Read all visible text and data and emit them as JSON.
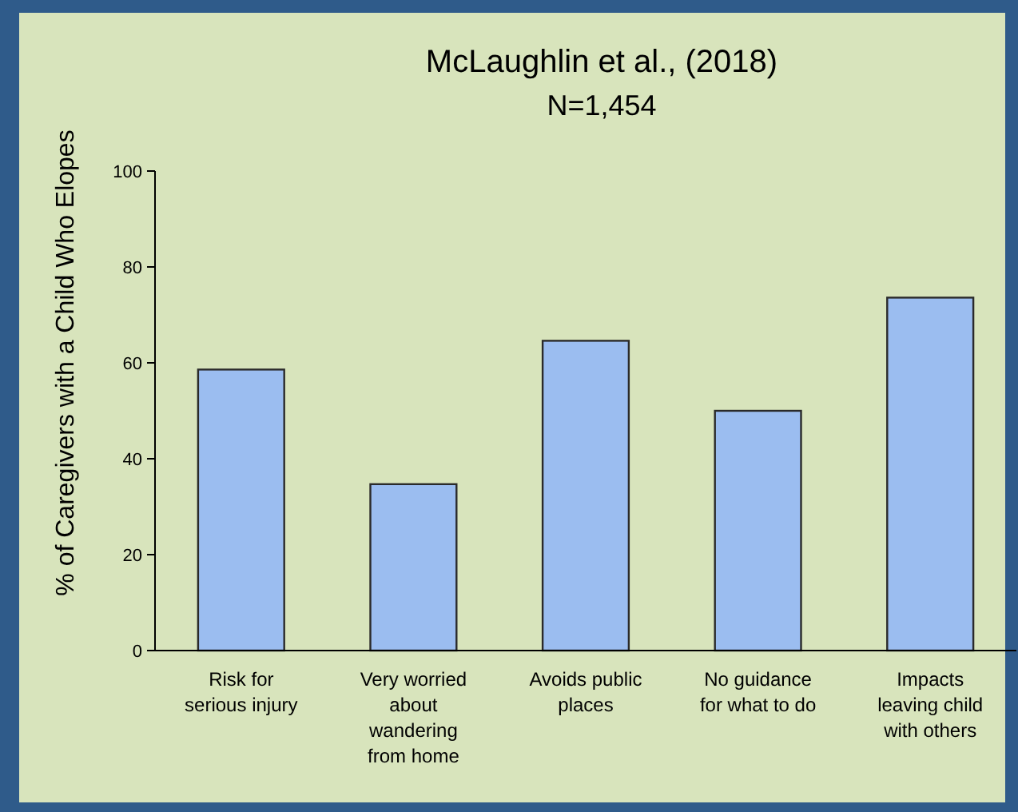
{
  "chart_data": {
    "type": "bar",
    "title": "McLaughlin et al., (2018)",
    "subtitle": "N=1,454",
    "ylabel": "% of Caregivers with a Child Who Elopes",
    "categories": [
      "Risk for serious injury",
      "Very worried about wandering from home",
      "Avoids public places",
      "No guidance for what to do",
      "Impacts leaving child with others"
    ],
    "values": [
      58.6,
      34.7,
      64.6,
      50.0,
      73.6
    ],
    "color": "#9bbdf0",
    "ylim": [
      0,
      100
    ],
    "yticks": [
      0,
      20,
      40,
      60,
      80,
      100
    ],
    "grid": false
  }
}
